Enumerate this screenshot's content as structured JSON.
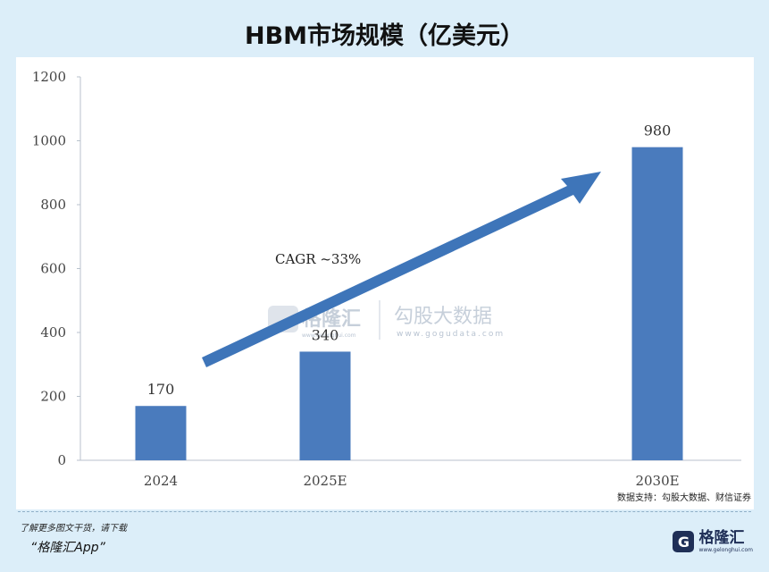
{
  "header": {
    "title": "HBM市场规模（亿美元）"
  },
  "chart_data": {
    "type": "bar",
    "title": "HBM市场规模（亿美元）",
    "categories": [
      "2024",
      "2025E",
      "2030E"
    ],
    "values": [
      170,
      340,
      980
    ],
    "ylim": [
      0,
      1200
    ],
    "yticks": [
      0,
      200,
      400,
      600,
      800,
      1000,
      1200
    ],
    "grid": false,
    "bar_color": "#4a7bbd",
    "annotation": {
      "text": "CAGR ~33%",
      "arrow": true
    }
  },
  "watermark": {
    "left_name": "格隆汇",
    "left_url": "www.gelonghui.com",
    "right_name": "勾股大数据",
    "right_url": "www.gogudata.com"
  },
  "source": "数据支持：勾股大数据、财信证券",
  "footer": {
    "note": "了解更多图文干货，请下载",
    "app": "“格隆汇App”",
    "brand_name": "格隆汇",
    "brand_url": "www.gelonghui.com"
  }
}
